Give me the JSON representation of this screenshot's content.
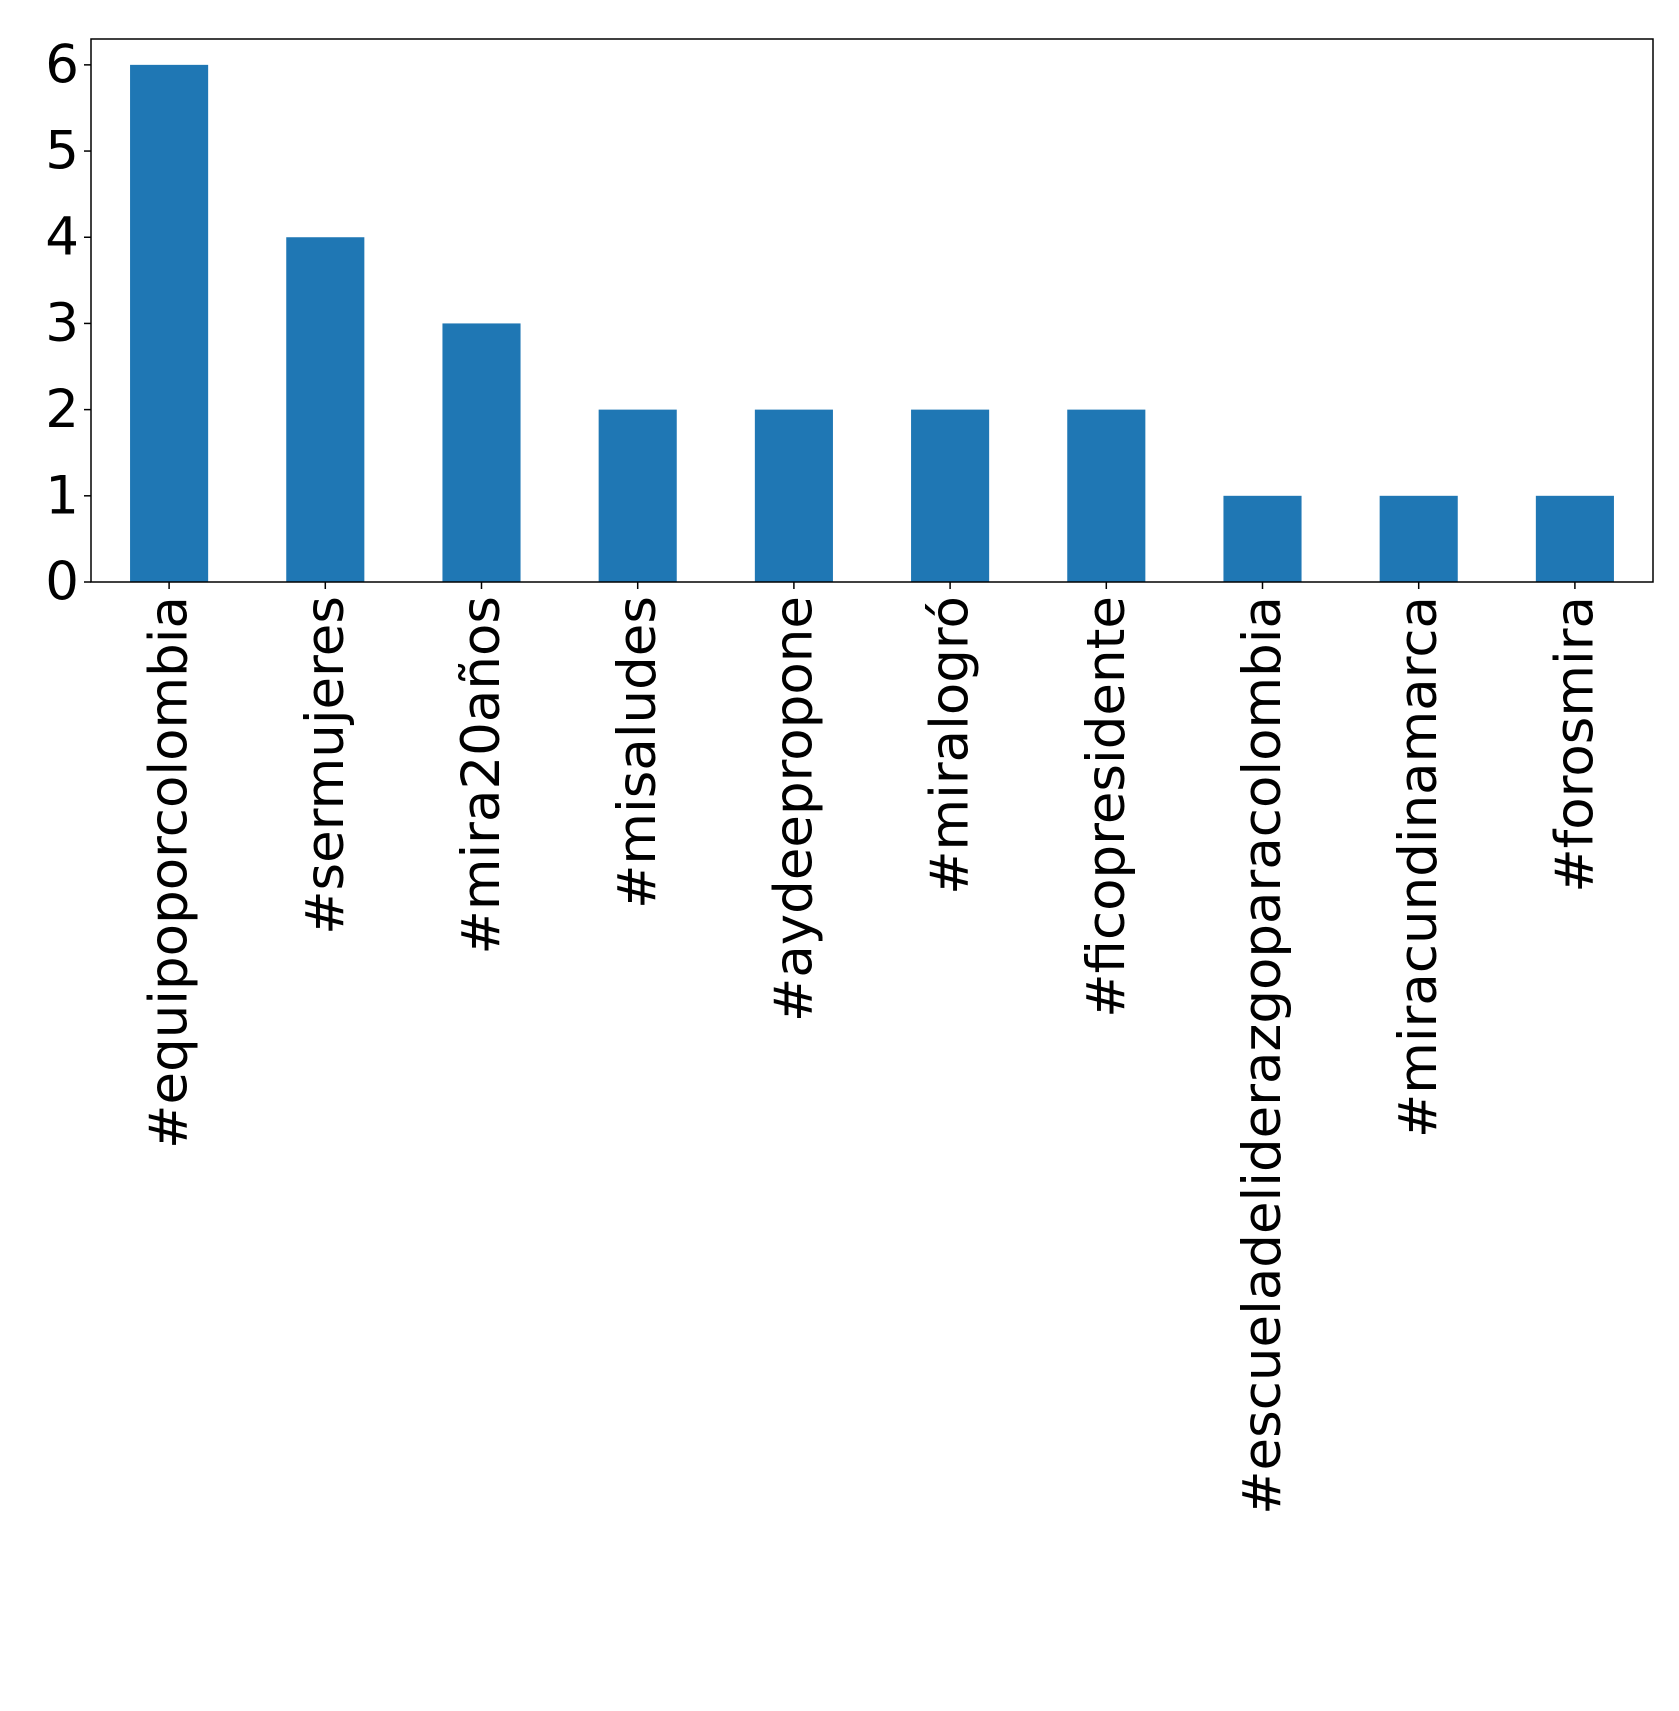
{
  "chart_data": {
    "type": "bar",
    "title": "",
    "xlabel": "",
    "ylabel": "",
    "categories": [
      "#equipoporcolombia",
      "#sermujeres",
      "#mira20años",
      "#misaludes",
      "#aydeepropone",
      "#miralogró",
      "#ficopresidente",
      "#escueladeliderazgoparacolombia",
      "#miracundinamarca",
      "#forosmira"
    ],
    "values": [
      6,
      4,
      3,
      2,
      2,
      2,
      2,
      1,
      1,
      1
    ],
    "ylim": [
      0,
      6.3
    ],
    "yticks": [
      0,
      1,
      2,
      3,
      4,
      5,
      6
    ],
    "ytick_labels": [
      "0",
      "1",
      "2",
      "3",
      "4",
      "5",
      "6"
    ],
    "grid": false,
    "legend": "none",
    "colors": {
      "bar": "#1f77b4",
      "axes": "#000000"
    }
  }
}
